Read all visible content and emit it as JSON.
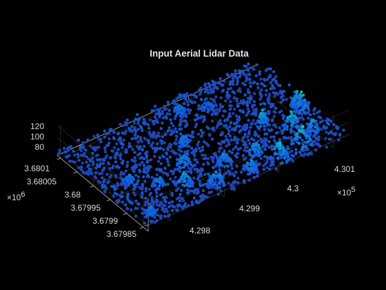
{
  "chart_data": {
    "type": "scatter",
    "title": "Input Aerial Lidar Data",
    "xlabel": "",
    "ylabel": "",
    "zlabel": "",
    "x_ticks": [
      "4.298",
      "4.299",
      "4.3",
      "4.301"
    ],
    "x_multiplier": "×10",
    "x_multiplier_exp": "5",
    "y_ticks": [
      "3.6801",
      "3.68005",
      "3.68",
      "3.67995",
      "3.6799",
      "3.67985"
    ],
    "y_multiplier": "×10",
    "y_multiplier_exp": "6",
    "z_ticks": [
      "120",
      "100",
      "80"
    ],
    "xlim": [
      429760,
      430130
    ],
    "ylim": [
      3679840,
      3680115
    ],
    "zlim": [
      70,
      125
    ],
    "grid": true,
    "colormap": "parula",
    "colors": {
      "background": "#000000",
      "grid": "#3a3a3a",
      "axis": "#9a9a9a",
      "text": "#dadada",
      "ground": "#2d4fd8"
    },
    "point_clusters": [
      {
        "x": 429900,
        "y": 3680090,
        "z": 100,
        "spread": 15
      },
      {
        "x": 429960,
        "y": 3680095,
        "z": 98,
        "spread": 12
      },
      {
        "x": 429860,
        "y": 3680060,
        "z": 102,
        "spread": 14
      },
      {
        "x": 429830,
        "y": 3680030,
        "z": 95,
        "spread": 10
      },
      {
        "x": 429890,
        "y": 3680010,
        "z": 96,
        "spread": 12
      },
      {
        "x": 429940,
        "y": 3680050,
        "z": 97,
        "spread": 12
      },
      {
        "x": 430010,
        "y": 3680100,
        "z": 110,
        "spread": 16
      },
      {
        "x": 430055,
        "y": 3680095,
        "z": 118,
        "spread": 18
      },
      {
        "x": 430070,
        "y": 3680040,
        "z": 112,
        "spread": 14
      },
      {
        "x": 430105,
        "y": 3680010,
        "z": 115,
        "spread": 12
      },
      {
        "x": 430040,
        "y": 3680000,
        "z": 104,
        "spread": 10
      },
      {
        "x": 429990,
        "y": 3680060,
        "z": 100,
        "spread": 12
      },
      {
        "x": 429800,
        "y": 3679990,
        "z": 90,
        "spread": 10
      },
      {
        "x": 429920,
        "y": 3679960,
        "z": 92,
        "spread": 10
      },
      {
        "x": 430000,
        "y": 3679900,
        "z": 88,
        "spread": 10
      },
      {
        "x": 429960,
        "y": 3679880,
        "z": 90,
        "spread": 10
      },
      {
        "x": 430110,
        "y": 3679990,
        "z": 105,
        "spread": 10
      },
      {
        "x": 430090,
        "y": 3680070,
        "z": 100,
        "spread": 10
      },
      {
        "x": 429780,
        "y": 3680090,
        "z": 92,
        "spread": 8
      }
    ]
  }
}
